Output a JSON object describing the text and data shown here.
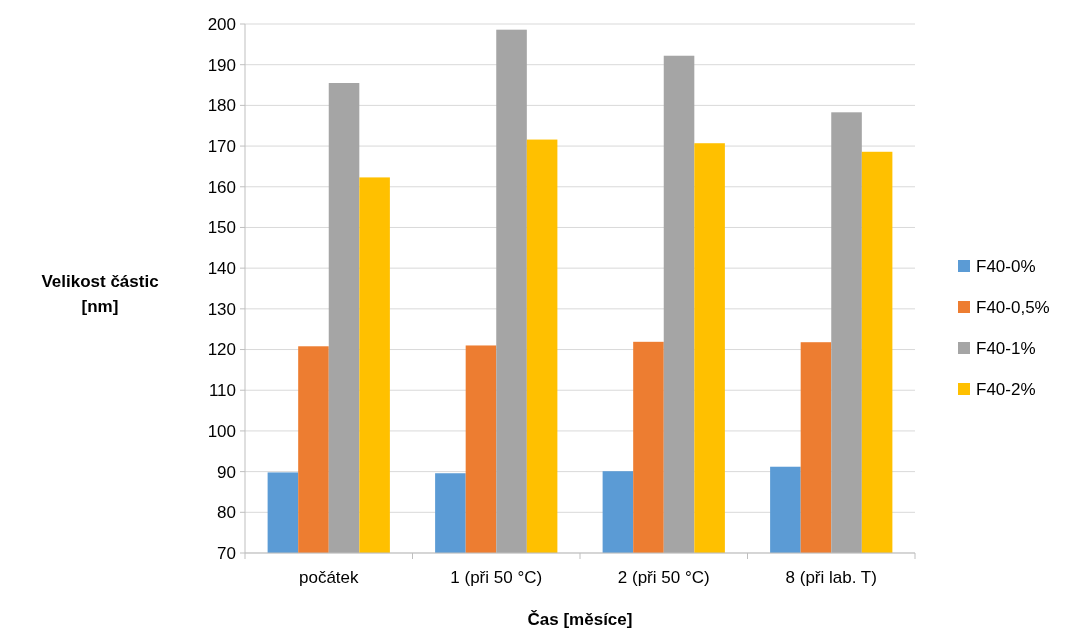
{
  "chart_data": {
    "type": "bar",
    "xlabel": "Čas [měsíce]",
    "ylabel": "Velikost částic [nm]",
    "categories": [
      "počátek",
      "1 (při 50 °C)",
      "2 (při 50 °C)",
      "8 (při lab. T)"
    ],
    "series": [
      {
        "name": "F40-0%",
        "color": "#5b9bd5",
        "values": [
          89.8,
          89.6,
          90.1,
          91.2
        ]
      },
      {
        "name": "F40-0,5%",
        "color": "#ed7d31",
        "values": [
          120.8,
          121.0,
          121.9,
          121.8
        ]
      },
      {
        "name": "F40-1%",
        "color": "#a5a5a5",
        "values": [
          185.5,
          198.6,
          192.2,
          178.3
        ]
      },
      {
        "name": "F40-2%",
        "color": "#ffc000",
        "values": [
          162.3,
          171.6,
          170.7,
          168.6
        ]
      }
    ],
    "ylim": [
      70,
      200
    ],
    "yticks": [
      70,
      80,
      90,
      100,
      110,
      120,
      130,
      140,
      150,
      160,
      170,
      180,
      190,
      200
    ],
    "grid": "y",
    "legend": "right"
  }
}
